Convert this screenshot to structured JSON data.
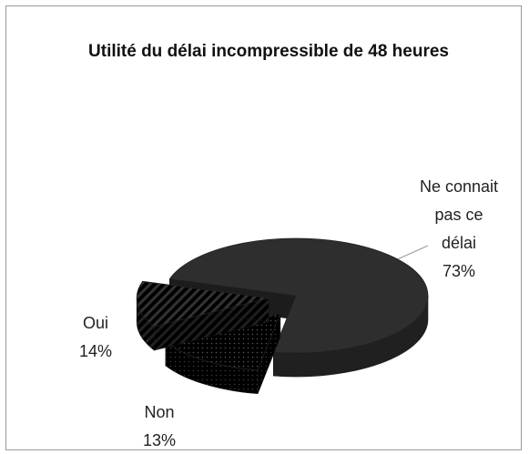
{
  "chart_data": {
    "type": "pie3d",
    "title": "Utilité du délai incompressible de 48 heures",
    "categories": [
      "Ne connait pas ce délai",
      "Oui",
      "Non"
    ],
    "values": [
      73,
      14,
      13
    ],
    "value_labels": [
      "73%",
      "14%",
      "13%"
    ],
    "colors": [
      "#2e2e2e",
      "#e4e4e4",
      "#ffffff"
    ]
  }
}
